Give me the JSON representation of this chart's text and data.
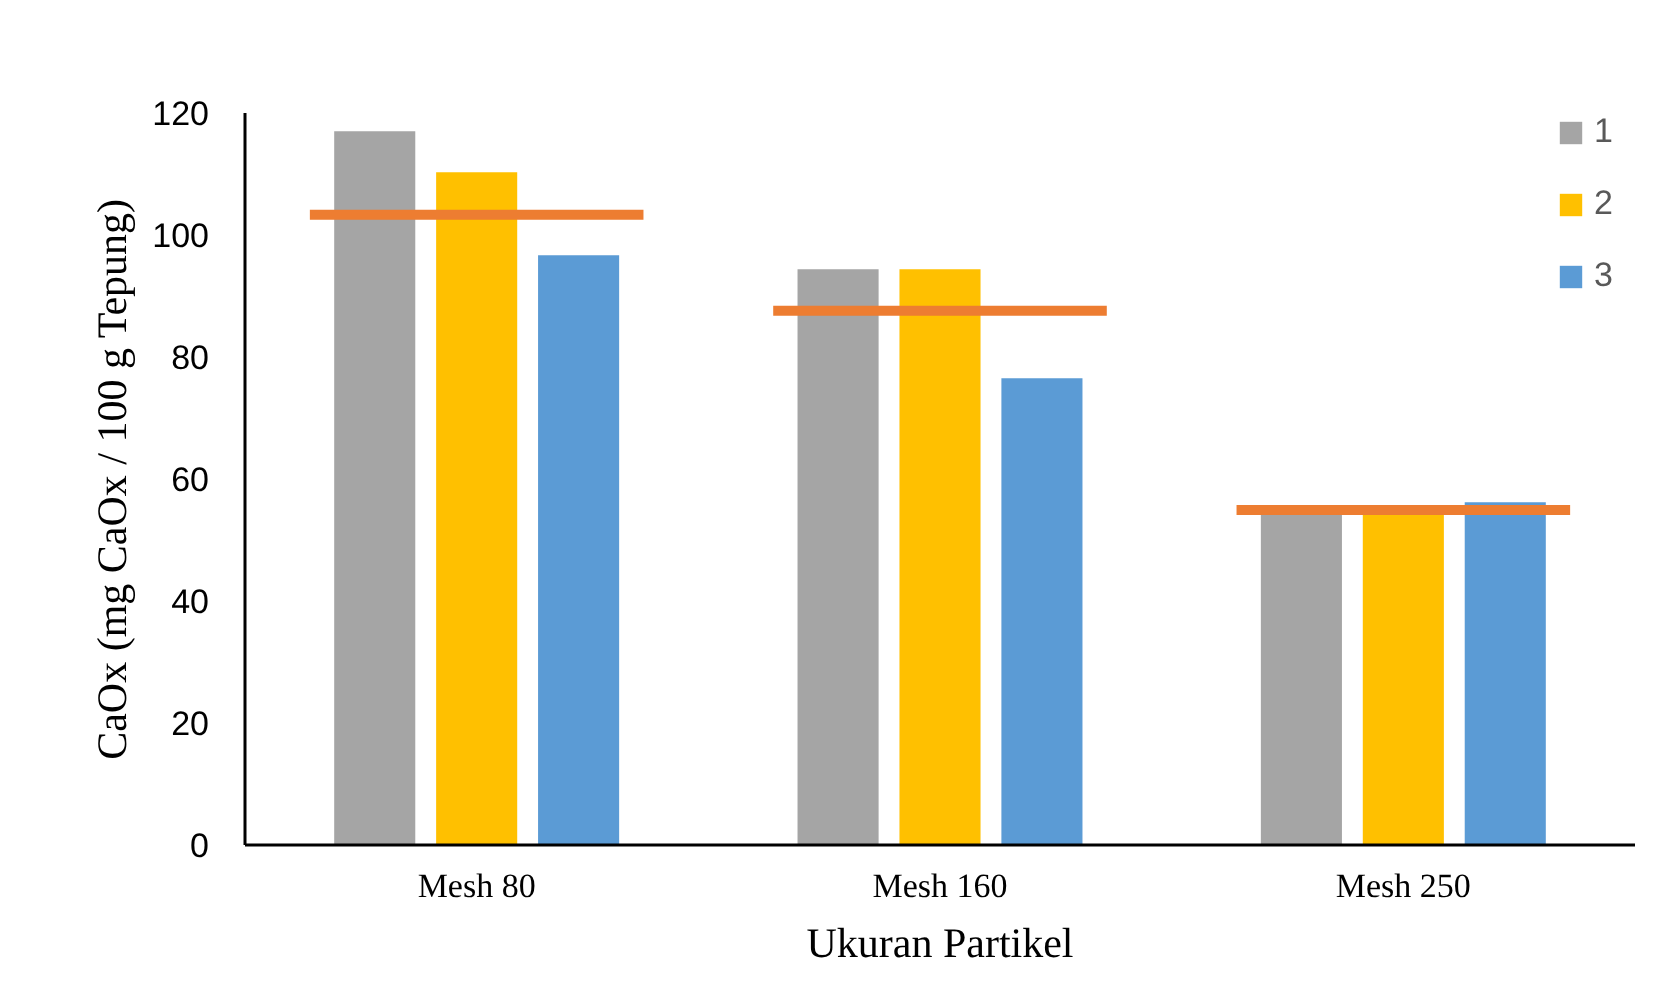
{
  "chart_data": {
    "type": "bar",
    "xlabel": "Ukuran Partikel",
    "ylabel": "CaOx (mg CaOx / 100 g Tepung)",
    "categories": [
      "Mesh 80",
      "Mesh 160",
      "Mesh 250"
    ],
    "series": [
      {
        "name": "1",
        "color": "#a5a5a5",
        "values": [
          117.0,
          94.4,
          54.5
        ]
      },
      {
        "name": "2",
        "color": "#ffc000",
        "values": [
          110.3,
          94.4,
          54.5
        ]
      },
      {
        "name": "3",
        "color": "#5b9bd5",
        "values": [
          96.7,
          76.5,
          56.2
        ]
      }
    ],
    "ref_lines": [
      {
        "axis": "y",
        "value": 103.3,
        "color": "#ed7d31"
      },
      {
        "axis": "y",
        "value": 87.6,
        "color": "#ed7d31"
      },
      {
        "axis": "y",
        "value": 54.9,
        "color": "#ed7d31"
      }
    ],
    "ylim": [
      0,
      120
    ],
    "yticks": [
      0,
      20,
      40,
      60,
      80,
      100,
      120
    ],
    "grid": false,
    "legend": "top right"
  }
}
